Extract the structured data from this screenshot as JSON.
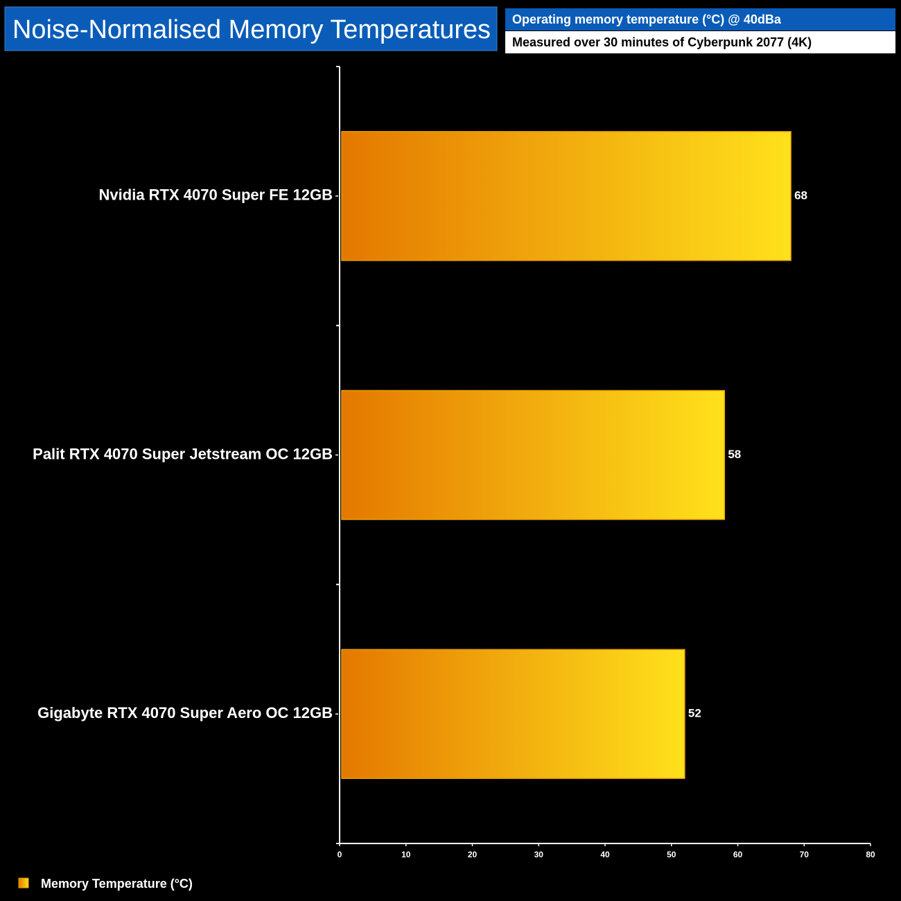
{
  "chart_data": {
    "type": "bar",
    "orientation": "horizontal",
    "title": "Noise-Normalised Memory Temperatures",
    "subtitle": "Operating memory temperature (°C) @ 40dBa",
    "caption": "Measured over 30 minutes of Cyberpunk 2077 (4K)",
    "categories": [
      "Nvidia RTX 4070 Super FE 12GB",
      "Palit RTX 4070 Super Jetstream OC 12GB",
      "Gigabyte RTX 4070 Super Aero OC 12GB"
    ],
    "series": [
      {
        "name": "Memory Temperature (°C)",
        "color": "#e47800",
        "color_end": "#ffe11c",
        "values": [
          68,
          58,
          52
        ]
      }
    ],
    "xlim": [
      0,
      80
    ],
    "xticks": [
      0,
      10,
      20,
      30,
      40,
      50,
      60,
      70,
      80
    ],
    "legend": "bottom-left"
  }
}
